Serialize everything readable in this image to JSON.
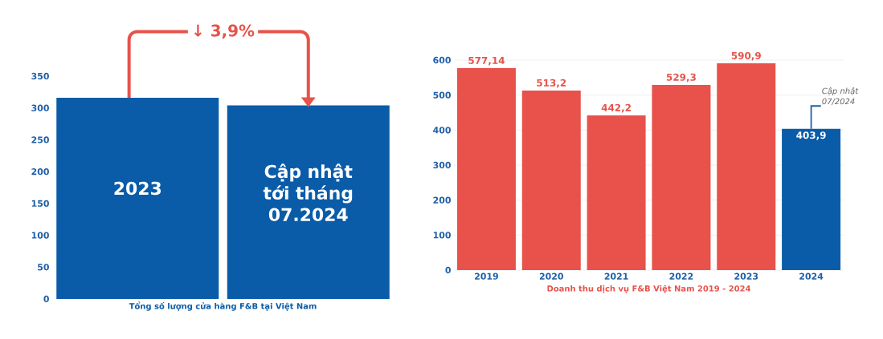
{
  "chart_data": [
    {
      "type": "bar",
      "xlabel": "Tổng số lượng cửa hàng F&B tại Việt Nam",
      "categories": [
        "2023",
        "Cập nhật tới tháng **07.2024**"
      ],
      "values": [
        316,
        304
      ],
      "color": "#0a5ca8",
      "ylim": [
        0,
        350
      ],
      "yticks": [
        0,
        50,
        100,
        150,
        200,
        250,
        300,
        350
      ],
      "annotations": [
        {
          "text": "↓ 3,9%",
          "x": "Cập nhật tới tháng **07.2024**",
          "y": 304
        }
      ]
    },
    {
      "type": "bar",
      "xlabel": "Doanh thu dịch vụ F&B Việt Nam 2019 - 2024",
      "categories": [
        "2019",
        "2020",
        "2021",
        "2022",
        "2023",
        "2024"
      ],
      "values": [
        577.14,
        513.2,
        442.2,
        529.3,
        590.9,
        403.9
      ],
      "value_labels": [
        "577,14",
        "513,2",
        "442,2",
        "529,3",
        "590,9",
        "403,9"
      ],
      "colors": [
        "#e8524a",
        "#e8524a",
        "#e8524a",
        "#e8524a",
        "#e8524a",
        "#0a5ca8"
      ],
      "ylim": [
        0,
        600
      ],
      "yticks": [
        0,
        100,
        200,
        300,
        400,
        500,
        600
      ],
      "grid": "y",
      "annotations": [
        {
          "text": "Cập nhật 07/2024",
          "x": "2024",
          "y": 403.9
        }
      ]
    }
  ]
}
